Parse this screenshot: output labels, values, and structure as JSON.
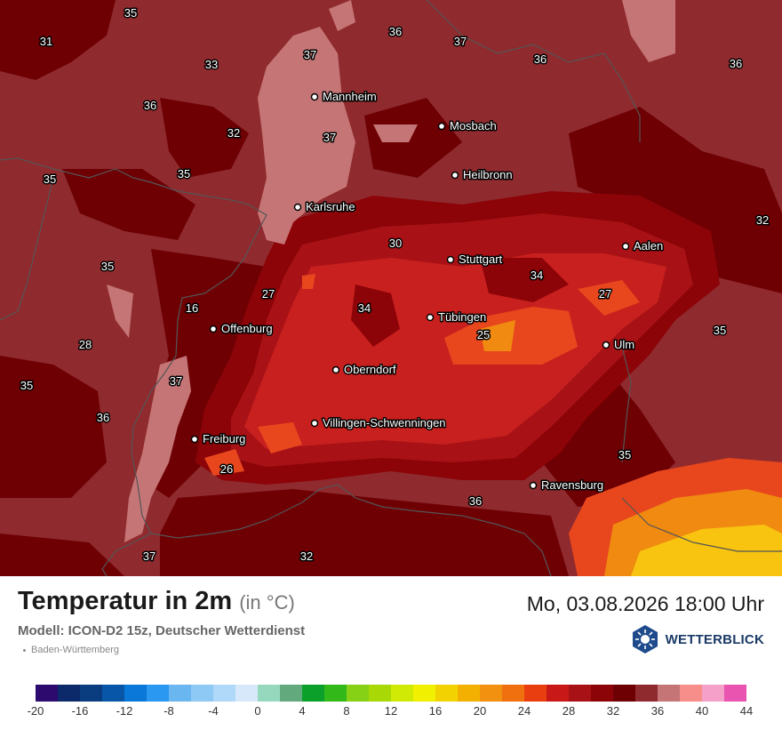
{
  "header": {
    "title": "Temperatur in 2m",
    "unit": "(in °C)",
    "datetime": "Mo, 03.08.2026 18:00 Uhr",
    "model": "Modell: ICON-D2 15z, Deutscher Wetterdienst",
    "region": "Baden-Württemberg",
    "brand": "WETTERBLICK"
  },
  "colors": {
    "c26": "#e8471e",
    "c28": "#c8201e",
    "c30": "#a81216",
    "c32": "#8c0408",
    "c34": "#6e0004",
    "c36": "#8f2a2e",
    "c37": "#c57575",
    "hot1": "#f08a10",
    "hot2": "#f8c410",
    "border": "#555555"
  },
  "legend": {
    "colors": [
      "#2d0a6e",
      "#0c2a6a",
      "#0a3c80",
      "#0856a8",
      "#0a78d8",
      "#2a98f0",
      "#6ab6f0",
      "#8ec8f4",
      "#b0d8f8",
      "#d6e8fa",
      "#96d8be",
      "#62aa7e",
      "#0aa02a",
      "#32b818",
      "#86d016",
      "#a8d806",
      "#d0ea06",
      "#f0f000",
      "#f2d200",
      "#f4b000",
      "#f29010",
      "#f07010",
      "#e83e10",
      "#c81818",
      "#a81216",
      "#8c0408",
      "#6e0004",
      "#8f2a2e",
      "#c57575",
      "#f88e8a",
      "#f4a0c8",
      "#e854b0"
    ],
    "ticks": [
      "-20",
      "-16",
      "-12",
      "-8",
      "-4",
      "0",
      "4",
      "8",
      "12",
      "16",
      "20",
      "24",
      "28",
      "32",
      "36",
      "40",
      "44"
    ]
  },
  "map": {
    "cities": [
      {
        "name": "Mannheim"
      },
      {
        "name": "Mosbach"
      },
      {
        "name": "Heilbronn"
      },
      {
        "name": "Karlsruhe"
      },
      {
        "name": "Stuttgart"
      },
      {
        "name": "Aalen"
      },
      {
        "name": "Tübingen"
      },
      {
        "name": "Offenburg"
      },
      {
        "name": "Ulm"
      },
      {
        "name": "Oberndorf"
      },
      {
        "name": "Villingen-Schwenningen"
      },
      {
        "name": "Freiburg"
      },
      {
        "name": "Ravensburg"
      }
    ],
    "temperatures": [
      "35",
      "31",
      "33",
      "36",
      "32",
      "37",
      "37",
      "36",
      "37",
      "36",
      "36",
      "35",
      "35",
      "35",
      "32",
      "30",
      "34",
      "27",
      "34",
      "16",
      "25",
      "27",
      "35",
      "28",
      "35",
      "37",
      "36",
      "35",
      "26",
      "36",
      "37",
      "32"
    ]
  }
}
